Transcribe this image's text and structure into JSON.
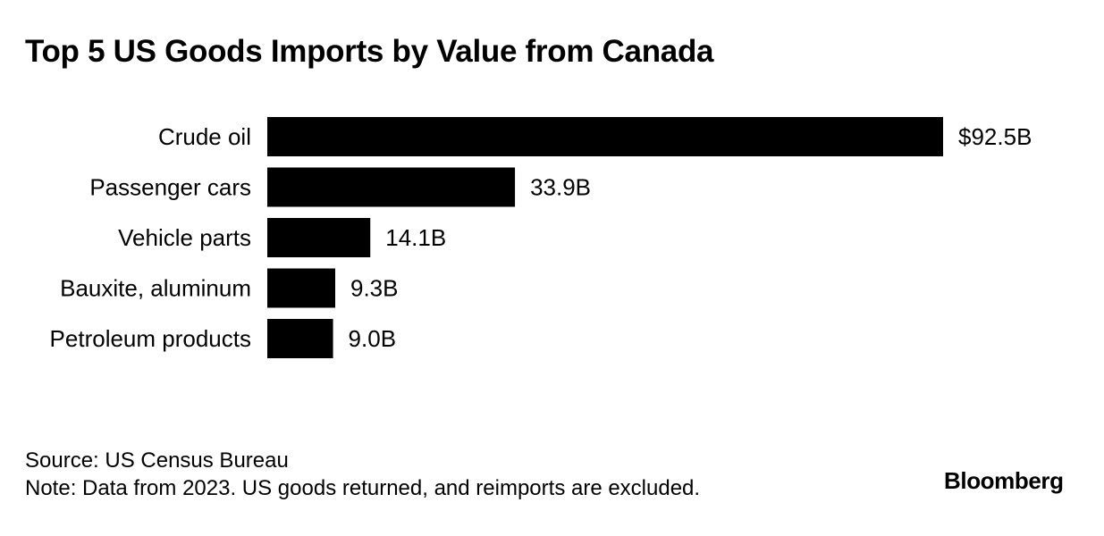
{
  "header": {
    "title": "Top 5 US Goods Imports by Value from Canada"
  },
  "chart_data": {
    "type": "bar",
    "orientation": "horizontal",
    "title": "Top 5 US Goods Imports by Value from Canada",
    "categories": [
      "Crude oil",
      "Passenger cars",
      "Vehicle parts",
      "Bauxite, aluminum",
      "Petroleum products"
    ],
    "values": [
      92.5,
      33.9,
      14.1,
      9.3,
      9.0
    ],
    "value_labels": [
      "$92.5B",
      "33.9B",
      "14.1B",
      "9.3B",
      "9.0B"
    ],
    "unit": "billions USD",
    "xlabel": "",
    "ylabel": "",
    "xlim": [
      0,
      92.5
    ],
    "grid": false,
    "legend": "none",
    "bar_color": "#000000"
  },
  "footer": {
    "source": "Source: US Census Bureau",
    "note": "Note: Data from 2023. US goods returned, and reimports are excluded."
  },
  "brand": {
    "name": "Bloomberg"
  }
}
